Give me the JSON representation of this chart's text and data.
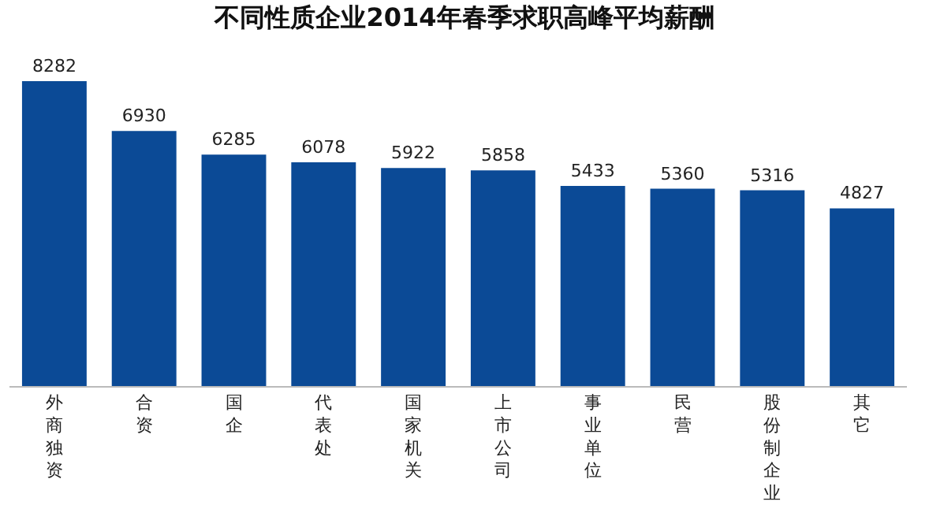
{
  "chart_data": {
    "type": "bar",
    "title": "不同性质企业2014年春季求职高峰平均薪酬",
    "categories": [
      "外商独资",
      "合资",
      "国企",
      "代表处",
      "国家机关",
      "上市公司",
      "事业单位",
      "民营",
      "股份制企业",
      "其它"
    ],
    "values": [
      8282,
      6930,
      6285,
      6078,
      5922,
      5858,
      5433,
      5360,
      5316,
      4827
    ],
    "color": "#0b4a96",
    "data_labels": true
  }
}
